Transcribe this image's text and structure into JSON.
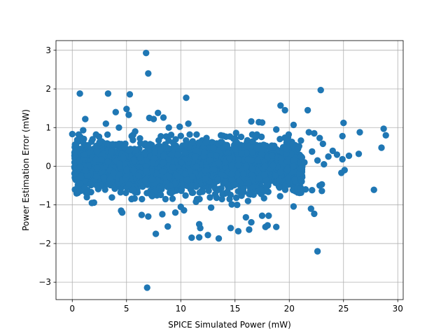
{
  "chart_data": {
    "type": "scatter",
    "title": "",
    "xlabel": "SPICE Simulated Power (mW)",
    "ylabel": "Power Estimation Error (mW)",
    "xlim": [
      -1.5,
      30.5
    ],
    "ylim": [
      -3.45,
      3.25
    ],
    "x_ticks": [
      0,
      5,
      10,
      15,
      20,
      25,
      30
    ],
    "y_ticks": [
      -3,
      -2,
      -1,
      0,
      1,
      2,
      3
    ],
    "grid": true,
    "legend": "none",
    "marker_color": "#1f77b4",
    "series": [
      {
        "points": [
          [
            6.8,
            2.93
          ],
          [
            7.0,
            2.4
          ],
          [
            22.9,
            1.97
          ],
          [
            0.7,
            1.88
          ],
          [
            3.3,
            1.88
          ],
          [
            5.3,
            1.86
          ],
          [
            10.5,
            1.77
          ],
          [
            19.2,
            1.57
          ],
          [
            5.0,
            1.48
          ],
          [
            21.7,
            1.45
          ],
          [
            19.6,
            1.45
          ],
          [
            4.0,
            1.4
          ],
          [
            7.9,
            1.38
          ],
          [
            5.2,
            1.33
          ],
          [
            16.5,
            1.16
          ],
          [
            17.2,
            1.14
          ],
          [
            17.5,
            1.13
          ],
          [
            10.7,
            1.1
          ],
          [
            25.0,
            1.12
          ],
          [
            20.4,
            1.07
          ],
          [
            7.1,
            1.25
          ],
          [
            7.5,
            1.22
          ],
          [
            8.4,
            1.26
          ],
          [
            0.0,
            0.83
          ],
          [
            28.7,
            0.97
          ],
          [
            28.9,
            0.8
          ],
          [
            26.5,
            0.88
          ],
          [
            28.5,
            0.48
          ],
          [
            26.4,
            0.32
          ],
          [
            25.5,
            0.27
          ],
          [
            24.0,
            0.4
          ],
          [
            24.4,
            0.3
          ],
          [
            23.1,
            0.58
          ],
          [
            22.8,
            0.73
          ],
          [
            21.8,
            0.88
          ],
          [
            22.3,
            0.85
          ],
          [
            24.9,
            0.78
          ],
          [
            20.8,
            0.45
          ],
          [
            19.7,
            0.71
          ],
          [
            22.1,
            0.38
          ],
          [
            21.1,
            0.25
          ],
          [
            20.3,
            0.56
          ],
          [
            18.8,
            0.95
          ],
          [
            23.6,
            0.25
          ],
          [
            24.9,
            0.18
          ],
          [
            22.6,
            0.15
          ],
          [
            23.2,
            0.05
          ],
          [
            25.1,
            -0.1
          ],
          [
            24.8,
            -0.17
          ],
          [
            22.8,
            -0.5
          ],
          [
            23.0,
            -0.47
          ],
          [
            23.0,
            -0.64
          ],
          [
            21.0,
            -0.58
          ],
          [
            21.5,
            -0.6
          ],
          [
            22.1,
            -0.62
          ],
          [
            27.8,
            -0.61
          ],
          [
            20.4,
            -1.04
          ],
          [
            22.0,
            -1.1
          ],
          [
            22.3,
            -1.23
          ],
          [
            18.8,
            -1.57
          ],
          [
            17.8,
            -1.57
          ],
          [
            18.0,
            -1.53
          ],
          [
            16.5,
            -1.45
          ],
          [
            16.0,
            -1.32
          ],
          [
            15.3,
            -1.68
          ],
          [
            16.3,
            -1.64
          ],
          [
            17.5,
            -1.28
          ],
          [
            18.1,
            -1.28
          ],
          [
            11.7,
            -1.5
          ],
          [
            11.8,
            -1.6
          ],
          [
            12.5,
            -1.78
          ],
          [
            11.0,
            -1.85
          ],
          [
            11.7,
            -1.84
          ],
          [
            13.5,
            -1.87
          ],
          [
            14.6,
            -1.6
          ],
          [
            22.6,
            -2.2
          ],
          [
            6.9,
            -3.14
          ],
          [
            7.7,
            -1.75
          ],
          [
            8.8,
            -1.56
          ],
          [
            7.0,
            -1.3
          ],
          [
            6.4,
            -1.26
          ],
          [
            4.5,
            -1.15
          ],
          [
            4.6,
            -1.2
          ],
          [
            10.3,
            -1.14
          ],
          [
            8.3,
            -1.24
          ],
          [
            9.5,
            -1.2
          ],
          [
            1.8,
            -0.95
          ],
          [
            2.0,
            -0.94
          ],
          [
            0.8,
            -0.28
          ],
          [
            14.7,
            -0.99
          ],
          [
            15.2,
            -1.0
          ],
          [
            14.5,
            -0.85
          ],
          [
            16.2,
            -0.9
          ],
          [
            10.0,
            -1.05
          ],
          [
            11.4,
            -0.92
          ],
          [
            12.8,
            -1.07
          ],
          [
            2.2,
            0.18
          ],
          [
            3.6,
            0.38
          ],
          [
            2.9,
            -0.3
          ],
          [
            4.8,
            0.5
          ],
          [
            5.6,
            -0.6
          ],
          [
            6.3,
            0.22
          ],
          [
            7.3,
            -0.75
          ],
          [
            8.1,
            0.42
          ],
          [
            9.0,
            -0.5
          ],
          [
            9.7,
            0.3
          ],
          [
            10.4,
            -0.2
          ],
          [
            11.1,
            0.62
          ],
          [
            12.0,
            -0.66
          ],
          [
            12.7,
            0.16
          ],
          [
            13.4,
            -0.35
          ],
          [
            14.1,
            0.55
          ],
          [
            14.9,
            -0.48
          ],
          [
            15.6,
            0.33
          ],
          [
            16.3,
            -0.72
          ],
          [
            17.0,
            0.47
          ],
          [
            17.7,
            -0.22
          ],
          [
            18.4,
            0.28
          ],
          [
            19.1,
            -0.55
          ],
          [
            19.8,
            0.12
          ],
          [
            20.5,
            -0.35
          ],
          [
            21.4,
            0.1
          ],
          [
            3.1,
            1.1
          ],
          [
            4.3,
            1.0
          ],
          [
            5.8,
            0.9
          ],
          [
            8.9,
            1.0
          ],
          [
            9.9,
            1.02
          ],
          [
            13.7,
            0.8
          ],
          [
            15.1,
            0.86
          ],
          [
            16.9,
            0.75
          ],
          [
            1.2,
            1.22
          ],
          [
            1.0,
            0.93
          ]
        ]
      }
    ],
    "cloud": {
      "count": 3000,
      "x_range": [
        0.2,
        21.2
      ],
      "y_sigma": 0.3
    }
  }
}
